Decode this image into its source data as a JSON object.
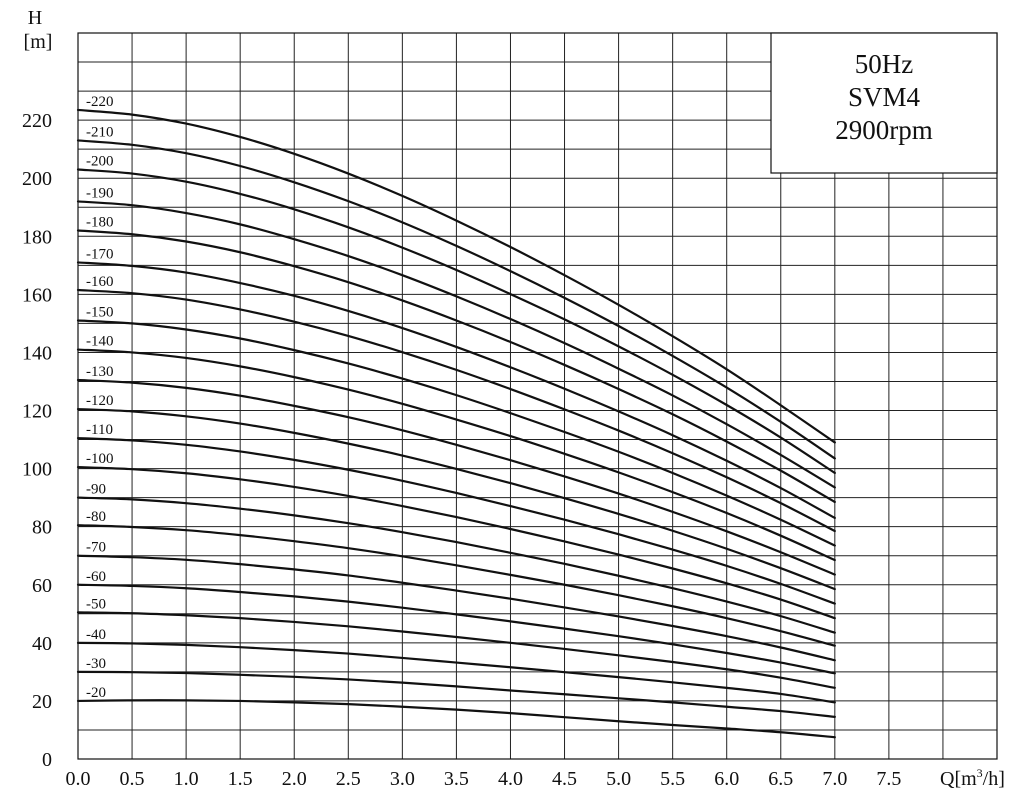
{
  "chart_data": {
    "type": "line",
    "ylabel_top": "H",
    "ylabel_unit": "[m]",
    "xlabel_prefix": "Q[m",
    "xlabel_sup": "3",
    "xlabel_suffix": "/h]",
    "xlim": [
      0,
      8.5
    ],
    "ylim": [
      0,
      250
    ],
    "x_ticks": [
      0.0,
      0.5,
      1.0,
      1.5,
      2.0,
      2.5,
      3.0,
      3.5,
      4.0,
      4.5,
      5.0,
      5.5,
      6.0,
      6.5,
      7.0,
      7.5
    ],
    "x_tick_labels": [
      "0.0",
      "0.5",
      "1.0",
      "1.5",
      "2.0",
      "2.5",
      "3.0",
      "3.5",
      "4.0",
      "4.5",
      "5.0",
      "5.5",
      "6.0",
      "6.5",
      "7.0",
      "7.5"
    ],
    "y_ticks": [
      0,
      20,
      40,
      60,
      80,
      100,
      120,
      140,
      160,
      180,
      200,
      220
    ],
    "y_tick_labels": [
      "0",
      "20",
      "40",
      "60",
      "80",
      "100",
      "120",
      "140",
      "160",
      "180",
      "200",
      "220"
    ],
    "grid": true,
    "legend_box": {
      "position": "top-right",
      "lines": [
        "50Hz",
        "SVM4",
        "2900rpm"
      ]
    },
    "x": [
      0.0,
      0.5,
      1.0,
      1.5,
      2.0,
      2.5,
      3.0,
      3.5,
      4.0,
      4.5,
      5.0,
      5.5,
      6.0,
      6.5,
      7.0
    ],
    "series": [
      {
        "name": "-20",
        "values": [
          20.0,
          20.2,
          20.2,
          20.0,
          19.5,
          18.9,
          18.0,
          17.0,
          15.8,
          14.4,
          13.0,
          11.7,
          10.5,
          9.2,
          7.5
        ]
      },
      {
        "name": "-30",
        "values": [
          30.0,
          29.9,
          29.6,
          29.0,
          28.3,
          27.4,
          26.3,
          25.0,
          23.6,
          22.3,
          20.9,
          19.5,
          18.0,
          16.5,
          14.5
        ]
      },
      {
        "name": "-40",
        "values": [
          40.0,
          39.8,
          39.3,
          38.5,
          37.5,
          36.3,
          34.8,
          33.2,
          31.6,
          29.9,
          28.2,
          26.4,
          24.5,
          22.4,
          19.5
        ]
      },
      {
        "name": "-50",
        "values": [
          50.5,
          50.2,
          49.5,
          48.5,
          47.2,
          45.7,
          43.9,
          42.0,
          40.0,
          37.9,
          35.7,
          33.4,
          30.9,
          28.0,
          24.5
        ]
      },
      {
        "name": "-60",
        "values": [
          60.0,
          59.6,
          58.8,
          57.5,
          56.0,
          54.2,
          52.1,
          49.8,
          47.4,
          44.9,
          42.3,
          39.5,
          36.5,
          33.2,
          29.5
        ]
      },
      {
        "name": "-70",
        "values": [
          70.0,
          69.5,
          68.6,
          67.1,
          65.3,
          63.2,
          60.7,
          58.0,
          55.2,
          52.2,
          49.1,
          45.8,
          42.3,
          38.4,
          34.0
        ]
      },
      {
        "name": "-80",
        "values": [
          80.5,
          79.9,
          78.8,
          77.1,
          75.0,
          72.6,
          69.8,
          66.7,
          63.4,
          60.0,
          56.4,
          52.6,
          48.5,
          44.0,
          39.0
        ]
      },
      {
        "name": "-90",
        "values": [
          90.0,
          89.4,
          88.1,
          86.2,
          83.9,
          81.2,
          78.1,
          74.7,
          71.0,
          67.2,
          63.1,
          58.8,
          54.2,
          49.2,
          43.5
        ]
      },
      {
        "name": "-100",
        "values": [
          100.5,
          99.8,
          98.4,
          96.3,
          93.7,
          90.6,
          87.1,
          83.3,
          79.2,
          74.9,
          70.4,
          65.6,
          60.5,
          54.9,
          48.5
        ]
      },
      {
        "name": "-110",
        "values": [
          110.5,
          109.7,
          108.2,
          105.9,
          103.0,
          99.6,
          95.8,
          91.6,
          87.1,
          82.4,
          77.4,
          72.1,
          66.5,
          60.3,
          53.5
        ]
      },
      {
        "name": "-120",
        "values": [
          120.5,
          119.7,
          118.0,
          115.5,
          112.3,
          108.6,
          104.5,
          99.9,
          95.0,
          89.8,
          84.4,
          78.6,
          72.4,
          65.7,
          58.5
        ]
      },
      {
        "name": "-130",
        "values": [
          130.5,
          129.6,
          127.8,
          125.1,
          121.6,
          117.7,
          113.2,
          108.2,
          102.9,
          97.3,
          91.4,
          85.1,
          78.4,
          71.2,
          63.5
        ]
      },
      {
        "name": "-140",
        "values": [
          141.0,
          140.0,
          138.1,
          135.2,
          131.5,
          127.2,
          122.3,
          116.9,
          111.2,
          105.1,
          98.7,
          91.9,
          84.7,
          76.9,
          68.5
        ]
      },
      {
        "name": "-150",
        "values": [
          151.0,
          150.0,
          147.9,
          144.8,
          140.8,
          136.2,
          131.0,
          125.3,
          119.1,
          112.6,
          105.8,
          98.5,
          90.7,
          82.4,
          73.5
        ]
      },
      {
        "name": "-160",
        "values": [
          161.5,
          160.4,
          158.2,
          154.8,
          150.6,
          145.7,
          140.1,
          134.0,
          127.4,
          120.4,
          113.1,
          105.3,
          97.0,
          88.1,
          78.5
        ]
      },
      {
        "name": "-170",
        "values": [
          171.0,
          169.8,
          167.5,
          163.9,
          159.5,
          154.3,
          148.4,
          141.9,
          134.9,
          127.5,
          119.7,
          111.5,
          102.7,
          93.3,
          83.0
        ]
      },
      {
        "name": "-180",
        "values": [
          182.0,
          180.7,
          178.2,
          174.5,
          169.7,
          164.2,
          157.9,
          151.0,
          143.6,
          135.7,
          127.4,
          118.7,
          109.3,
          99.3,
          88.5
        ]
      },
      {
        "name": "-190",
        "values": [
          192.0,
          190.7,
          188.0,
          184.1,
          179.0,
          173.2,
          166.6,
          159.3,
          151.5,
          143.2,
          134.4,
          125.2,
          115.3,
          104.7,
          93.5
        ]
      },
      {
        "name": "-200",
        "values": [
          203.0,
          201.6,
          198.8,
          194.6,
          189.3,
          183.1,
          176.1,
          168.4,
          160.1,
          151.4,
          142.1,
          132.3,
          121.9,
          110.7,
          98.5
        ]
      },
      {
        "name": "-210",
        "values": [
          213.0,
          211.5,
          208.6,
          204.2,
          198.6,
          192.1,
          184.8,
          176.7,
          168.0,
          158.8,
          149.1,
          138.8,
          127.9,
          116.1,
          103.5
        ]
      },
      {
        "name": "-220",
        "values": [
          223.5,
          221.9,
          218.8,
          214.2,
          208.4,
          201.6,
          193.9,
          185.4,
          176.3,
          166.6,
          156.4,
          145.6,
          134.2,
          121.8,
          109.0
        ]
      }
    ]
  }
}
